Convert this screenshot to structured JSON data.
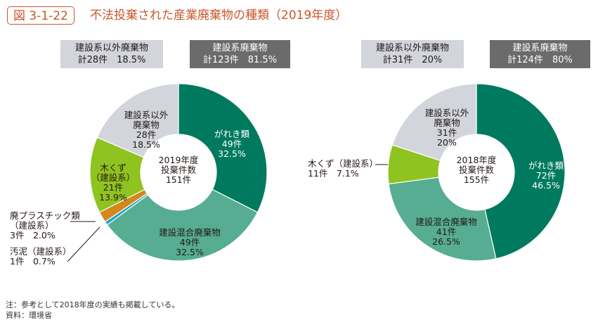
{
  "figure": {
    "number": "図 3-1-22",
    "title": "不法投棄された産業廃棄物の種類（2019年度）"
  },
  "summaries": [
    {
      "line1": "建設系以外廃棄物",
      "line2": "計28件　18.5%"
    },
    {
      "line1": "建設系廃棄物",
      "line2": "計123件　81.5%"
    },
    {
      "line1": "建設系以外廃棄物",
      "line2": "計31件　20%"
    },
    {
      "line1": "建設系廃棄物",
      "line2": "計124件　80%"
    }
  ],
  "notes": {
    "note": "注：参考として2018年度の実績も掲載している。",
    "source": "資料：環境省"
  },
  "colors": {
    "title": "#c8572a",
    "rubble": "#007a5e",
    "mixed": "#56ad91",
    "wood": "#8fc31f",
    "plastic": "#d4871b",
    "sludge": "#1ca5c8",
    "non_construction": "#d2d5dc",
    "dark_box": "#6b6b6b"
  },
  "chart_data": [
    {
      "type": "pie",
      "title": "2019年度 投棄件数 151件",
      "center_label": [
        "2019年度",
        "投棄件数",
        "151件"
      ],
      "slices": [
        {
          "label": "がれき類",
          "count": 49,
          "percent": 32.5,
          "color_key": "rubble",
          "text": [
            "がれき類",
            "49件",
            "32.5%"
          ],
          "text_color": "#ffffff"
        },
        {
          "label": "建設混合廃棄物",
          "count": 49,
          "percent": 32.5,
          "color_key": "mixed",
          "text": [
            "建設混合廃棄物",
            "49件",
            "32.5%"
          ],
          "text_color": "#231815"
        },
        {
          "label": "汚泥（建設系）",
          "count": 1,
          "percent": 0.7,
          "color_key": "sludge",
          "callout": [
            "汚泥（建設系）",
            "1件　0.7%"
          ]
        },
        {
          "label": "廃プラスチック類（建設系）",
          "count": 3,
          "percent": 2.0,
          "color_key": "plastic",
          "callout": [
            "廃プラスチック類",
            "（建設系）",
            "3件　2.0%"
          ]
        },
        {
          "label": "木くず（建設系）",
          "count": 21,
          "percent": 13.9,
          "color_key": "wood",
          "text": [
            "木くず",
            "（建設系）",
            "21件",
            "13.9%"
          ],
          "text_color": "#231815"
        },
        {
          "label": "建設系以外廃棄物",
          "count": 28,
          "percent": 18.5,
          "color_key": "non_construction",
          "text": [
            "建設系以外",
            "廃棄物",
            "28件",
            "18.5%"
          ],
          "text_color": "#231815"
        }
      ]
    },
    {
      "type": "pie",
      "title": "2018年度 投棄件数 155件",
      "center_label": [
        "2018年度",
        "投棄件数",
        "155件"
      ],
      "slices": [
        {
          "label": "がれき類",
          "count": 72,
          "percent": 46.5,
          "color_key": "rubble",
          "text": [
            "がれき類",
            "72件",
            "46.5%"
          ],
          "text_color": "#ffffff"
        },
        {
          "label": "建設混合廃棄物",
          "count": 41,
          "percent": 26.5,
          "color_key": "mixed",
          "text": [
            "建設混合廃棄物",
            "41件",
            "26.5%"
          ],
          "text_color": "#231815"
        },
        {
          "label": "木くず（建設系）",
          "count": 11,
          "percent": 7.1,
          "color_key": "wood",
          "callout": [
            "木くず（建設系）",
            "11件　7.1%"
          ]
        },
        {
          "label": "建設系以外廃棄物",
          "count": 31,
          "percent": 20,
          "color_key": "non_construction",
          "text": [
            "建設系以外",
            "廃棄物",
            "31件",
            "20%"
          ],
          "text_color": "#231815"
        }
      ]
    }
  ]
}
